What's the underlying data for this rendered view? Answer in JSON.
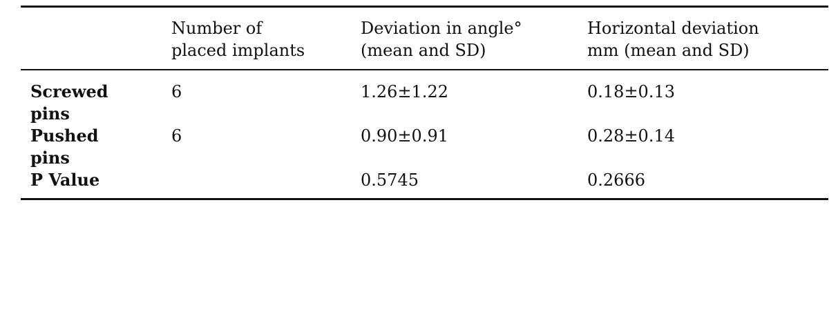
{
  "table": {
    "headers": [
      "",
      "Number of placed implants",
      "Deviation in angle° (mean and SD)",
      "Horizontal deviation mm (mean and SD)"
    ],
    "header_lines": [
      [
        ""
      ],
      [
        "Number of",
        "placed implants"
      ],
      [
        "Deviation in angle°",
        "(mean and SD)"
      ],
      [
        "Horizontal deviation",
        "mm (mean and SD)"
      ]
    ],
    "rows": [
      {
        "label": "Screwed pins",
        "label_lines": [
          "Screwed",
          "pins"
        ],
        "implants": "6",
        "angle": "1.26±1.22",
        "horizontal": "0.18±0.13"
      },
      {
        "label": "Pushed pins",
        "label_lines": [
          "Pushed",
          "pins"
        ],
        "implants": "6",
        "angle": "0.90±0.91",
        "horizontal": "0.28±0.14"
      },
      {
        "label": "P Value",
        "label_lines": [
          "P Value"
        ],
        "implants": "",
        "angle": "0.5745",
        "horizontal": "0.2666"
      }
    ]
  }
}
